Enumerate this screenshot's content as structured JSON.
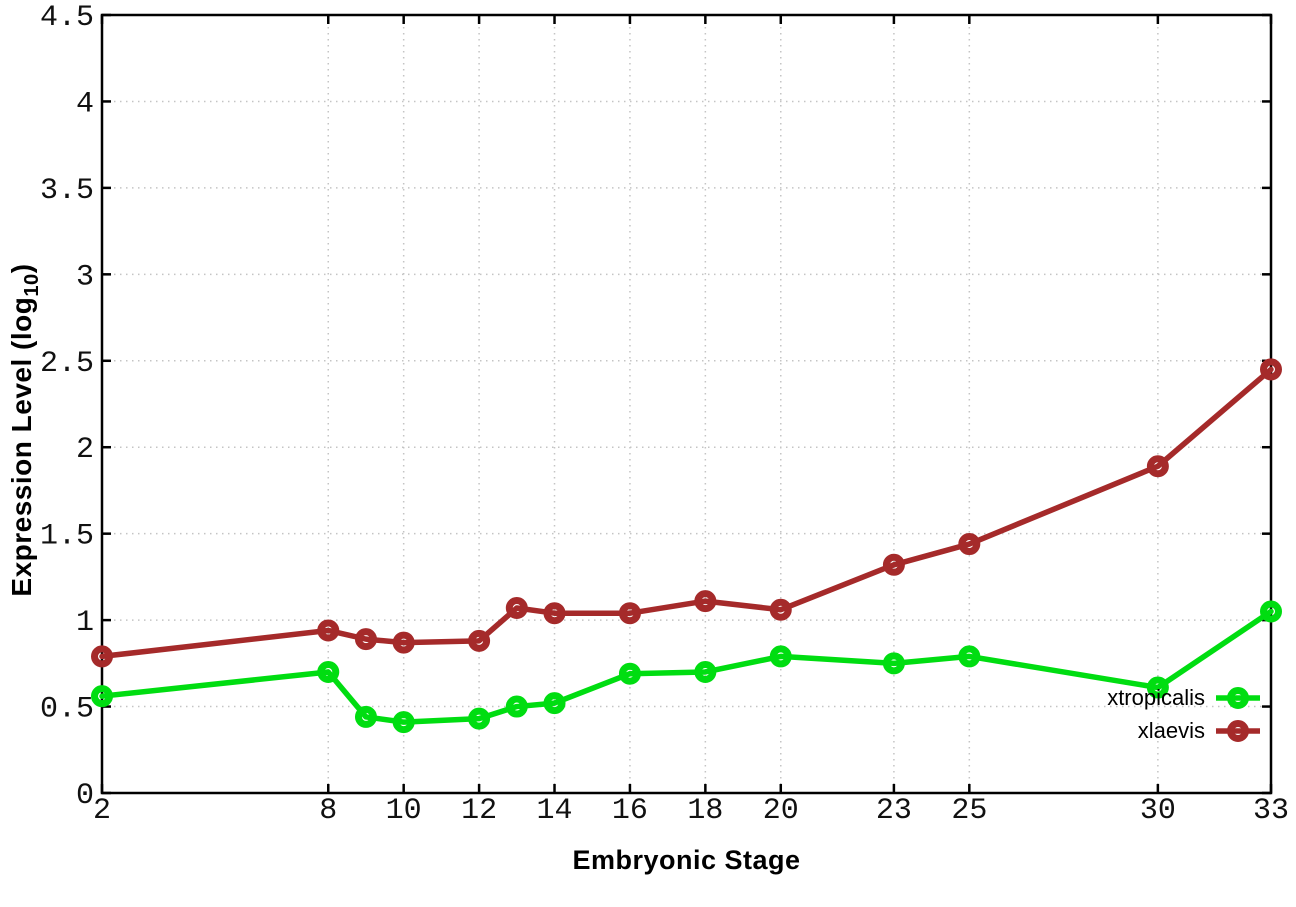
{
  "chart_data": {
    "type": "line",
    "title": "",
    "xlabel": "Embryonic Stage",
    "ylabel": "Expression Level (log10)",
    "ylabel_main": "Expression Level (log",
    "ylabel_sub": "10",
    "ylabel_close": ")",
    "xlim": [
      2,
      33
    ],
    "ylim": [
      0,
      4.5
    ],
    "xticks": [
      2,
      8,
      10,
      12,
      14,
      16,
      18,
      20,
      23,
      25,
      30,
      33
    ],
    "xtick_labels": [
      "2",
      "8",
      "10",
      "12",
      "14",
      "16",
      "18",
      "20",
      "23",
      "25",
      "30",
      "33"
    ],
    "yticks": [
      0,
      0.5,
      1,
      1.5,
      2,
      2.5,
      3,
      3.5,
      4,
      4.5
    ],
    "ytick_labels": [
      "0",
      "0.5",
      "1",
      "1.5",
      "2",
      "2.5",
      "3",
      "3.5",
      "4",
      "4.5"
    ],
    "grid": true,
    "legend_position": "inside-right-middle",
    "x": [
      2,
      8,
      9,
      10,
      12,
      13,
      14,
      16,
      18,
      20,
      23,
      25,
      30,
      33
    ],
    "series": [
      {
        "name": "xtropicalis",
        "color": "#00dd11",
        "values": [
          0.56,
          0.7,
          0.44,
          0.41,
          0.43,
          0.5,
          0.52,
          0.69,
          0.7,
          0.79,
          0.75,
          0.79,
          0.61,
          1.05
        ]
      },
      {
        "name": "xlaevis",
        "color": "#a52a2a",
        "values": [
          0.79,
          0.94,
          0.89,
          0.87,
          0.88,
          1.07,
          1.04,
          1.04,
          1.11,
          1.06,
          1.32,
          1.44,
          1.89,
          2.45
        ]
      }
    ]
  }
}
